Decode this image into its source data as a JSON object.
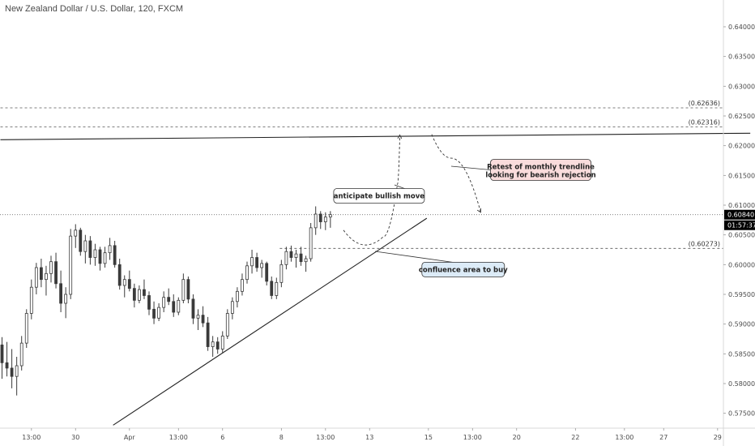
{
  "header": {
    "title": "New Zealand Dollar / U.S. Dollar, 120, FXCM"
  },
  "colors": {
    "candle": "#3a3a3a",
    "axis_text": "#4a4a4a",
    "price_tag_bg": "#000000",
    "price_tag_text": "#ffffff",
    "note_white_bg": "#ffffff",
    "note_blue_bg": "#dcebf7",
    "note_pink_bg": "#f9dcdc"
  },
  "chart_data": {
    "type": "candlestick",
    "title": "New Zealand Dollar / U.S. Dollar, 120, FXCM",
    "ylim": [
      0.5725,
      0.6445
    ],
    "y_ticks": [
      "0.64000",
      "0.63500",
      "0.63000",
      "0.62500",
      "0.62000",
      "0.61500",
      "0.61000",
      "0.60500",
      "0.60000",
      "0.59500",
      "0.59000",
      "0.58500",
      "0.58000",
      "0.57500"
    ],
    "y_tick_values": [
      0.64,
      0.635,
      0.63,
      0.625,
      0.62,
      0.615,
      0.61,
      0.605,
      0.6,
      0.595,
      0.59,
      0.585,
      0.58,
      0.575
    ],
    "x_ticks": [
      "13:00",
      "30",
      "Apr",
      "13:00",
      "6",
      "8",
      "13:00",
      "13",
      "15",
      "13:00",
      "20",
      "22",
      "13:00",
      "27",
      "29"
    ],
    "x_tick_index": [
      6,
      15,
      26,
      36,
      45,
      57,
      66,
      75,
      87,
      96,
      105,
      117,
      127,
      135,
      146
    ],
    "last_price": {
      "value": "0.60840",
      "countdown": "01:57:37"
    },
    "levels": [
      {
        "label": "(0.62636)",
        "value": 0.62636,
        "from_index": 0
      },
      {
        "label": "(0.62316)",
        "value": 0.62316,
        "from_index": 0
      },
      {
        "label": "(0.60273)",
        "value": 0.60273,
        "from_index": 57
      }
    ],
    "last_price_line": 0.6084,
    "trendlines": [
      {
        "name": "monthly trendline",
        "from": [
          0,
          0.621
        ],
        "to": [
          153,
          0.6221
        ]
      },
      {
        "name": "ascending trendline",
        "from": [
          23,
          0.573
        ],
        "to": [
          87,
          0.6078
        ]
      }
    ],
    "annotations": [
      {
        "text": "anticipate bullish move",
        "at": [
          68,
          0.6128
        ]
      },
      {
        "text": "confluence area to buy",
        "at": [
          86,
          0.6004
        ]
      },
      {
        "text_lines": [
          "Retest of monthly trendline",
          "looking for bearish rejection"
        ],
        "at": [
          100,
          0.6177
        ]
      }
    ],
    "projection_paths": [
      {
        "points": [
          [
            70,
            0.6058
          ],
          [
            74.5,
            0.6033
          ],
          [
            78,
            0.6046
          ],
          [
            81,
            0.6135
          ],
          [
            81.5,
            0.6218
          ]
        ]
      },
      {
        "points": [
          [
            88,
            0.6219
          ],
          [
            92,
            0.6179
          ],
          [
            98,
            0.6088
          ]
        ]
      }
    ],
    "candles": [
      [
        0.5865,
        0.5878,
        0.5808,
        0.5835
      ],
      [
        0.5835,
        0.587,
        0.5812,
        0.5826
      ],
      [
        0.5826,
        0.5858,
        0.5792,
        0.5812
      ],
      [
        0.5812,
        0.5845,
        0.578,
        0.583
      ],
      [
        0.583,
        0.588,
        0.5822,
        0.5868
      ],
      [
        0.5868,
        0.5925,
        0.586,
        0.5918
      ],
      [
        0.5918,
        0.5975,
        0.5908,
        0.5962
      ],
      [
        0.5962,
        0.6003,
        0.595,
        0.5995
      ],
      [
        0.5995,
        0.601,
        0.5962,
        0.5975
      ],
      [
        0.5975,
        0.5998,
        0.5948,
        0.5985
      ],
      [
        0.5985,
        0.6015,
        0.597,
        0.6005
      ],
      [
        0.6005,
        0.602,
        0.596,
        0.5968
      ],
      [
        0.5968,
        0.599,
        0.592,
        0.5935
      ],
      [
        0.5935,
        0.5962,
        0.591,
        0.595
      ],
      [
        0.595,
        0.606,
        0.5942,
        0.6048
      ],
      [
        0.6048,
        0.6068,
        0.6028,
        0.6058
      ],
      [
        0.6058,
        0.6062,
        0.6015,
        0.6022
      ],
      [
        0.6022,
        0.605,
        0.6002,
        0.604
      ],
      [
        0.604,
        0.6048,
        0.6,
        0.6012
      ],
      [
        0.6012,
        0.6035,
        0.5998,
        0.6025
      ],
      [
        0.6025,
        0.603,
        0.599,
        0.6002
      ],
      [
        0.6002,
        0.603,
        0.5995,
        0.602
      ],
      [
        0.602,
        0.6045,
        0.6008,
        0.6032
      ],
      [
        0.6032,
        0.604,
        0.5995,
        0.6
      ],
      [
        0.6,
        0.601,
        0.5958,
        0.5965
      ],
      [
        0.5965,
        0.5982,
        0.5945,
        0.5975
      ],
      [
        0.5975,
        0.599,
        0.5955,
        0.596
      ],
      [
        0.596,
        0.5968,
        0.5928,
        0.594
      ],
      [
        0.594,
        0.5965,
        0.5935,
        0.5958
      ],
      [
        0.5958,
        0.5975,
        0.5942,
        0.5948
      ],
      [
        0.5948,
        0.5955,
        0.5915,
        0.5925
      ],
      [
        0.5925,
        0.5938,
        0.59,
        0.591
      ],
      [
        0.591,
        0.5935,
        0.5905,
        0.5928
      ],
      [
        0.5928,
        0.5955,
        0.592,
        0.5945
      ],
      [
        0.5945,
        0.596,
        0.5932,
        0.5938
      ],
      [
        0.5938,
        0.595,
        0.5912,
        0.592
      ],
      [
        0.592,
        0.5945,
        0.5915,
        0.594
      ],
      [
        0.594,
        0.5985,
        0.5935,
        0.5975
      ],
      [
        0.5975,
        0.598,
        0.5935,
        0.5942
      ],
      [
        0.5942,
        0.595,
        0.59,
        0.591
      ],
      [
        0.591,
        0.5925,
        0.589,
        0.5915
      ],
      [
        0.5915,
        0.593,
        0.5895,
        0.5902
      ],
      [
        0.5902,
        0.5912,
        0.5855,
        0.5862
      ],
      [
        0.5862,
        0.588,
        0.5845,
        0.587
      ],
      [
        0.587,
        0.5878,
        0.585,
        0.5858
      ],
      [
        0.5858,
        0.5888,
        0.5852,
        0.588
      ],
      [
        0.588,
        0.5925,
        0.5875,
        0.5918
      ],
      [
        0.5918,
        0.5945,
        0.5908,
        0.5938
      ],
      [
        0.5938,
        0.5962,
        0.5928,
        0.5955
      ],
      [
        0.5955,
        0.5985,
        0.5948,
        0.5975
      ],
      [
        0.5975,
        0.6005,
        0.5968,
        0.5998
      ],
      [
        0.5998,
        0.6025,
        0.5985,
        0.6012
      ],
      [
        0.6012,
        0.602,
        0.5988,
        0.5995
      ],
      [
        0.5995,
        0.6008,
        0.5978,
        0.6002
      ],
      [
        0.6002,
        0.6005,
        0.5965,
        0.5972
      ],
      [
        0.5972,
        0.598,
        0.5942,
        0.5948
      ],
      [
        0.5948,
        0.5978,
        0.5942,
        0.597
      ],
      [
        0.597,
        0.6008,
        0.5962,
        0.6
      ],
      [
        0.6,
        0.603,
        0.5992,
        0.6022
      ],
      [
        0.6022,
        0.6032,
        0.6005,
        0.6012
      ],
      [
        0.6012,
        0.6025,
        0.5995,
        0.6018
      ],
      [
        0.6018,
        0.603,
        0.5998,
        0.6005
      ],
      [
        0.6005,
        0.6015,
        0.5988,
        0.601
      ],
      [
        0.601,
        0.607,
        0.6005,
        0.6062
      ],
      [
        0.6062,
        0.6098,
        0.605,
        0.6085
      ],
      [
        0.6085,
        0.609,
        0.606,
        0.6072
      ],
      [
        0.6072,
        0.6088,
        0.6058,
        0.608
      ],
      [
        0.608,
        0.609,
        0.6062,
        0.6084
      ]
    ]
  }
}
